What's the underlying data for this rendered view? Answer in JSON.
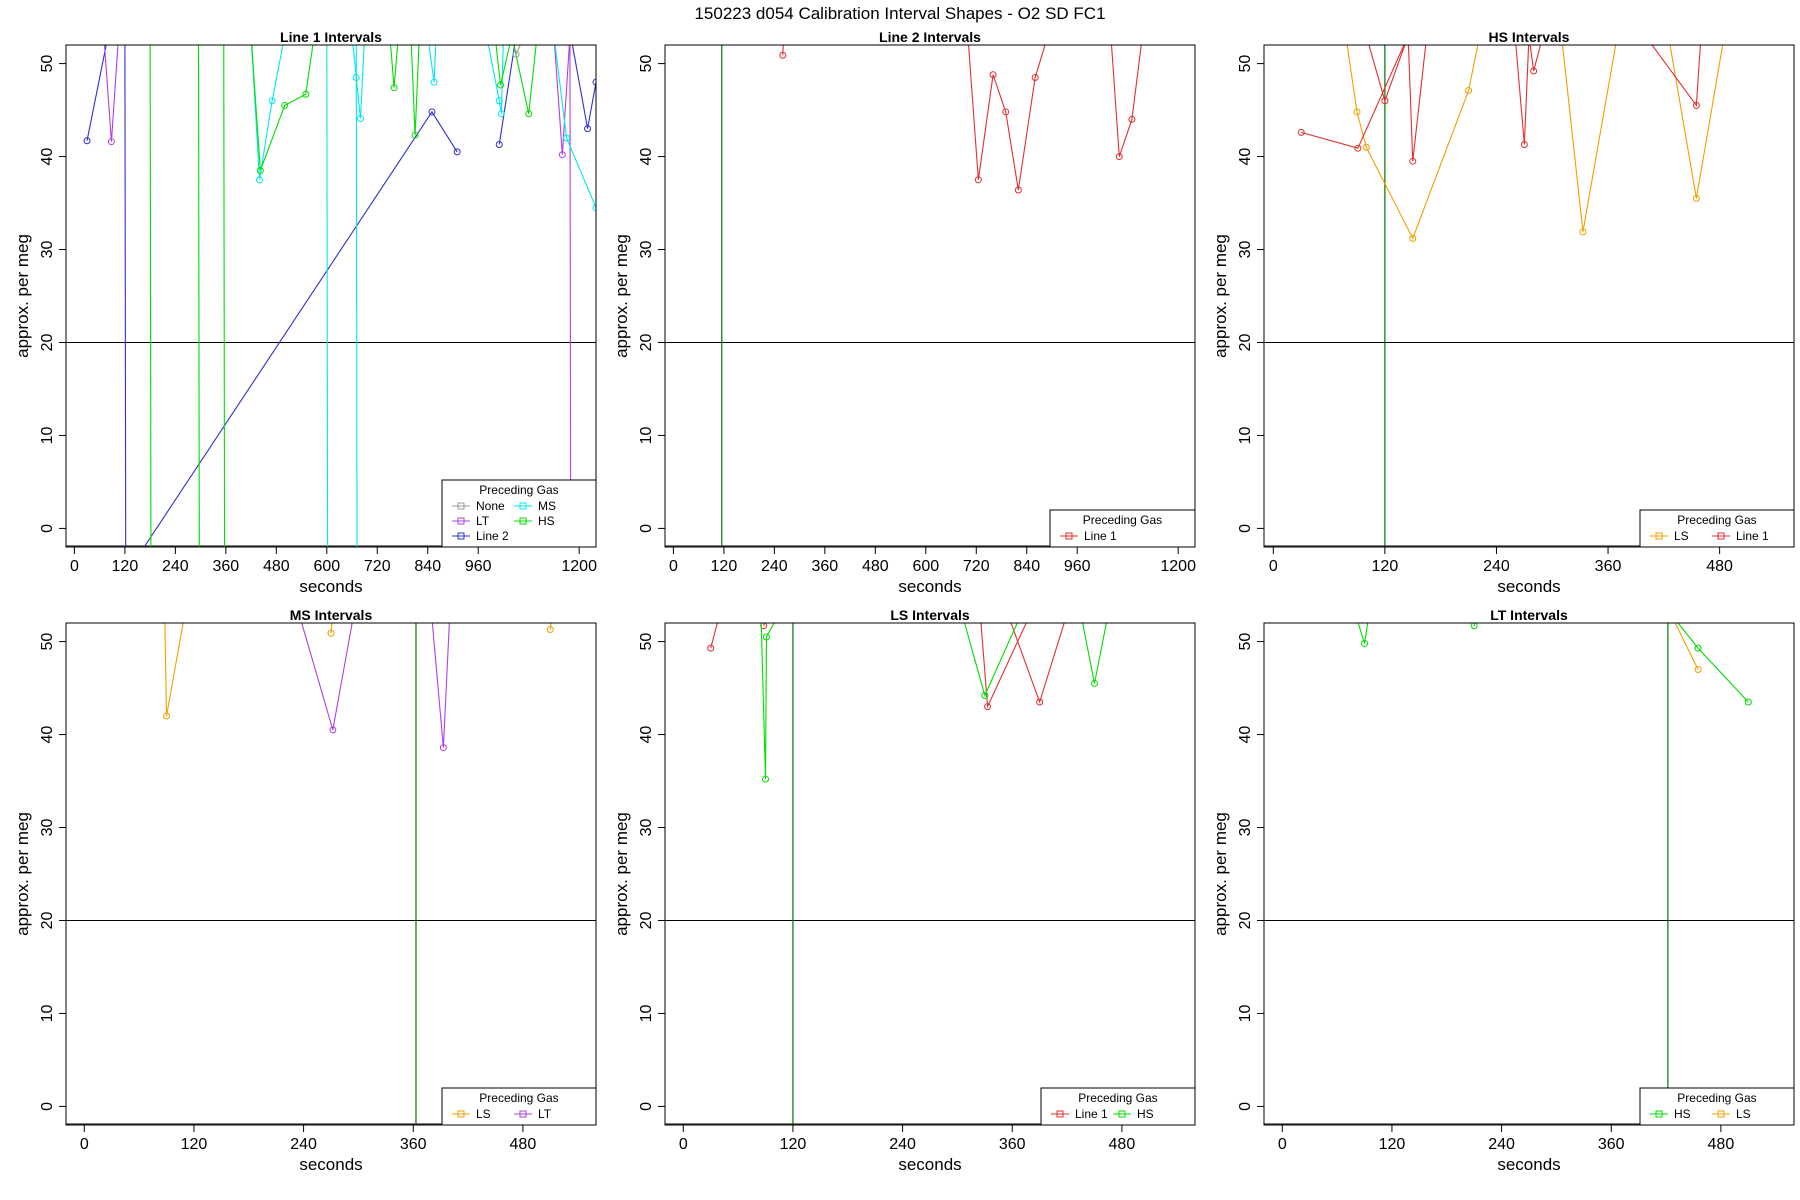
{
  "figure_title": "150223   d054   Calibration Interval Shapes - O2 SD FC1",
  "colors": {
    "None": "#999999",
    "LT": "#b040e0",
    "Line 2": "#3030d0",
    "MS": "#00e8f0",
    "HS": "#00dd00",
    "Line 1": "#e03030",
    "LS": "#f0a000",
    "reference_line": "#000000",
    "marker_line": "#007700"
  },
  "chart_data": [
    {
      "type": "line",
      "title": "Line 1 Intervals",
      "xlabel": "seconds",
      "ylabel": "approx. per meg",
      "xlim": [
        -20,
        1240
      ],
      "ylim": [
        -2,
        52
      ],
      "xticks": [
        0,
        120,
        240,
        360,
        480,
        600,
        720,
        840,
        960,
        1200
      ],
      "yticks": [
        0,
        10,
        20,
        30,
        40,
        50
      ],
      "hline": 20,
      "legend": {
        "title": "Preceding Gas",
        "position": "bottom-right",
        "columns": 2,
        "entries": [
          "None",
          "LT",
          "Line 2",
          "MS",
          "HS"
        ]
      },
      "series": [
        {
          "name": "Line 2",
          "x": [
            30,
            80,
            120,
            122,
            850,
            910
          ],
          "y": [
            41.7,
            53,
            53,
            -5,
            44.8,
            40.5
          ]
        },
        {
          "name": "Line 2",
          "x": [
            1010,
            1050,
            1100,
            1130,
            1180,
            1220,
            1240
          ],
          "y": [
            41.3,
            53,
            53,
            53,
            53,
            43.0,
            48
          ]
        },
        {
          "name": "LT",
          "x": [
            70,
            88,
            105
          ],
          "y": [
            53,
            41.6,
            53
          ]
        },
        {
          "name": "LT",
          "x": [
            1140,
            1160,
            1178,
            1180
          ],
          "y": [
            53,
            40.2,
            53,
            -5
          ]
        },
        {
          "name": "MS",
          "x": [
            420,
            440,
            470,
            500
          ],
          "y": [
            53,
            37.5,
            46,
            53
          ]
        },
        {
          "name": "MS",
          "x": [
            600,
            602
          ],
          "y": [
            53,
            -5
          ]
        },
        {
          "name": "MS",
          "x": [
            670,
            672
          ],
          "y": [
            53,
            -5
          ]
        },
        {
          "name": "MS",
          "x": [
            660,
            670,
            680,
            690,
            700
          ],
          "y": [
            53,
            48.5,
            44.1,
            53,
            53
          ]
        },
        {
          "name": "MS",
          "x": [
            840,
            855,
            860
          ],
          "y": [
            53,
            48.0,
            53
          ]
        },
        {
          "name": "MS",
          "x": [
            980,
            1010,
            1015,
            1020,
            1030,
            1050
          ],
          "y": [
            53,
            46.0,
            44.6,
            53,
            53,
            53
          ]
        },
        {
          "name": "MS",
          "x": [
            1140,
            1170,
            1240
          ],
          "y": [
            53,
            42.0,
            34.5
          ]
        },
        {
          "name": "HS",
          "x": [
            0,
            50
          ],
          "y": [
            52,
            53
          ]
        },
        {
          "name": "HS",
          "x": [
            180,
            182
          ],
          "y": [
            53,
            -5
          ]
        },
        {
          "name": "HS",
          "x": [
            295,
            297
          ],
          "y": [
            53,
            -5
          ]
        },
        {
          "name": "HS",
          "x": [
            355,
            357
          ],
          "y": [
            53,
            -5
          ]
        },
        {
          "name": "HS",
          "x": [
            420,
            442,
            500,
            550,
            570,
            590
          ],
          "y": [
            53,
            38.5,
            45.5,
            46.7,
            53,
            53
          ]
        },
        {
          "name": "HS",
          "x": [
            750,
            760,
            770,
            800,
            810,
            820,
            830
          ],
          "y": [
            53,
            47.4,
            53,
            53,
            42.3,
            53,
            53
          ]
        },
        {
          "name": "HS",
          "x": [
            1000,
            1013,
            1040,
            1080,
            1100
          ],
          "y": [
            53,
            47.7,
            53,
            44.6,
            53
          ]
        },
        {
          "name": "None",
          "x": [
            1050,
            1070
          ],
          "y": [
            51.0,
            53
          ]
        }
      ]
    },
    {
      "type": "line",
      "title": "Line 2 Intervals",
      "xlabel": "seconds",
      "ylabel": "approx. per meg",
      "xlim": [
        -20,
        1240
      ],
      "ylim": [
        -2,
        52
      ],
      "xticks": [
        0,
        120,
        240,
        360,
        480,
        600,
        720,
        840,
        960,
        1200
      ],
      "yticks": [
        0,
        10,
        20,
        30,
        40,
        50
      ],
      "hline": 20,
      "vline": 115,
      "legend": {
        "title": "Preceding Gas",
        "position": "bottom-right",
        "columns": 1,
        "entries": [
          "Line 1"
        ]
      },
      "series": [
        {
          "name": "Line 1",
          "x": [
            260,
            262
          ],
          "y": [
            50.9,
            53
          ]
        },
        {
          "name": "Line 1",
          "x": [
            700,
            725,
            760,
            790,
            820,
            860,
            890,
            930
          ],
          "y": [
            53,
            37.5,
            48.8,
            44.8,
            36.4,
            48.5,
            53,
            53
          ]
        },
        {
          "name": "Line 1",
          "x": [
            1040,
            1060,
            1090,
            1115,
            1130
          ],
          "y": [
            53,
            40.0,
            44.0,
            53,
            53
          ]
        },
        {
          "name": "Line 1",
          "x": [
            259,
            261
          ],
          "y": [
            52,
            53
          ]
        }
      ]
    },
    {
      "type": "line",
      "title": "HS Intervals",
      "xlabel": "seconds",
      "ylabel": "approx. per meg",
      "xlim": [
        -10,
        560
      ],
      "ylim": [
        -2,
        52
      ],
      "xticks": [
        0,
        120,
        240,
        360,
        480
      ],
      "yticks": [
        0,
        10,
        20,
        30,
        40,
        50
      ],
      "hline": 20,
      "vline": 120,
      "legend": {
        "title": "Preceding Gas",
        "position": "bottom-right",
        "columns": 2,
        "entries": [
          "LS",
          "Line 1"
        ]
      },
      "series": [
        {
          "name": "LS",
          "x": [
            78,
            90,
            100,
            150,
            210,
            222
          ],
          "y": [
            53,
            44.8,
            41.0,
            31.2,
            47.1,
            53
          ]
        },
        {
          "name": "LS",
          "x": [
            310,
            333,
            370
          ],
          "y": [
            53,
            31.9,
            53
          ]
        },
        {
          "name": "LS",
          "x": [
            425,
            455,
            485
          ],
          "y": [
            53,
            35.5,
            53
          ]
        },
        {
          "name": "Line 1",
          "x": [
            30,
            91,
            145,
            150,
            165
          ],
          "y": [
            42.6,
            40.9,
            53,
            39.5,
            53
          ]
        },
        {
          "name": "Line 1",
          "x": [
            100,
            120,
            145,
            150
          ],
          "y": [
            53,
            46,
            53,
            53
          ]
        },
        {
          "name": "Line 1",
          "x": [
            260,
            270,
            275,
            280,
            290
          ],
          "y": [
            53,
            41.3,
            53,
            49.2,
            53
          ]
        },
        {
          "name": "Line 1",
          "x": [
            400,
            455,
            460,
            485
          ],
          "y": [
            53,
            45.5,
            53,
            53
          ]
        }
      ]
    },
    {
      "type": "line",
      "title": "MS Intervals",
      "xlabel": "seconds",
      "ylabel": "approx. per meg",
      "xlim": [
        -20,
        560
      ],
      "ylim": [
        -2,
        52
      ],
      "xticks": [
        0,
        120,
        240,
        360,
        480
      ],
      "yticks": [
        0,
        10,
        20,
        30,
        40,
        50
      ],
      "hline": 20,
      "vline": 363,
      "legend": {
        "title": "Preceding Gas",
        "position": "bottom-right",
        "columns": 2,
        "entries": [
          "LS",
          "LT"
        ]
      },
      "series": [
        {
          "name": "LS",
          "x": [
            88,
            90,
            110
          ],
          "y": [
            53,
            42.0,
            53
          ]
        },
        {
          "name": "LS",
          "x": [
            270,
            272
          ],
          "y": [
            50.9,
            53
          ]
        },
        {
          "name": "LS",
          "x": [
            510,
            512
          ],
          "y": [
            51.3,
            53
          ]
        },
        {
          "name": "LT",
          "x": [
            235,
            272,
            295
          ],
          "y": [
            53,
            40.5,
            53
          ]
        },
        {
          "name": "LT",
          "x": [
            380,
            393,
            400
          ],
          "y": [
            53,
            38.6,
            53
          ]
        }
      ]
    },
    {
      "type": "line",
      "title": "LS Intervals",
      "xlabel": "seconds",
      "ylabel": "approx. per meg",
      "xlim": [
        -20,
        560
      ],
      "ylim": [
        -2,
        52
      ],
      "xticks": [
        0,
        120,
        240,
        360,
        480
      ],
      "yticks": [
        0,
        10,
        20,
        30,
        40,
        50
      ],
      "hline": 20,
      "vline": 120,
      "legend": {
        "title": "Preceding Gas",
        "position": "bottom-right",
        "columns": 2,
        "entries": [
          "Line 1",
          "HS"
        ]
      },
      "series": [
        {
          "name": "Line 1",
          "x": [
            30,
            40
          ],
          "y": [
            49.3,
            53
          ]
        },
        {
          "name": "Line 1",
          "x": [
            88,
            90
          ],
          "y": [
            51.7,
            53
          ]
        },
        {
          "name": "Line 1",
          "x": [
            325,
            333,
            380
          ],
          "y": [
            53,
            43.0,
            53
          ]
        },
        {
          "name": "Line 1",
          "x": [
            355,
            390,
            420
          ],
          "y": [
            53,
            43.5,
            53
          ]
        },
        {
          "name": "HS",
          "x": [
            85,
            90,
            91,
            105
          ],
          "y": [
            53,
            35.2,
            50.5,
            53
          ]
        },
        {
          "name": "HS",
          "x": [
            305,
            330,
            370
          ],
          "y": [
            53,
            44.2,
            53
          ]
        },
        {
          "name": "HS",
          "x": [
            435,
            450,
            465
          ],
          "y": [
            53,
            45.5,
            53
          ]
        }
      ]
    },
    {
      "type": "line",
      "title": "LT Intervals",
      "xlabel": "seconds",
      "ylabel": "approx. per meg",
      "xlim": [
        -20,
        560
      ],
      "ylim": [
        -2,
        52
      ],
      "xticks": [
        0,
        120,
        240,
        360,
        480
      ],
      "yticks": [
        0,
        10,
        20,
        30,
        40,
        50
      ],
      "hline": 20,
      "vline": 422,
      "legend": {
        "title": "Preceding Gas",
        "position": "bottom-right",
        "columns": 2,
        "entries": [
          "HS",
          "LS"
        ]
      },
      "series": [
        {
          "name": "HS",
          "x": [
            80,
            90,
            95
          ],
          "y": [
            53,
            49.8,
            53
          ]
        },
        {
          "name": "HS",
          "x": [
            210,
            212
          ],
          "y": [
            51.7,
            53
          ]
        },
        {
          "name": "HS",
          "x": [
            425,
            455,
            510
          ],
          "y": [
            53,
            49.3,
            43.5
          ]
        },
        {
          "name": "LS",
          "x": [
            425,
            455
          ],
          "y": [
            53,
            47.0
          ]
        }
      ]
    }
  ]
}
